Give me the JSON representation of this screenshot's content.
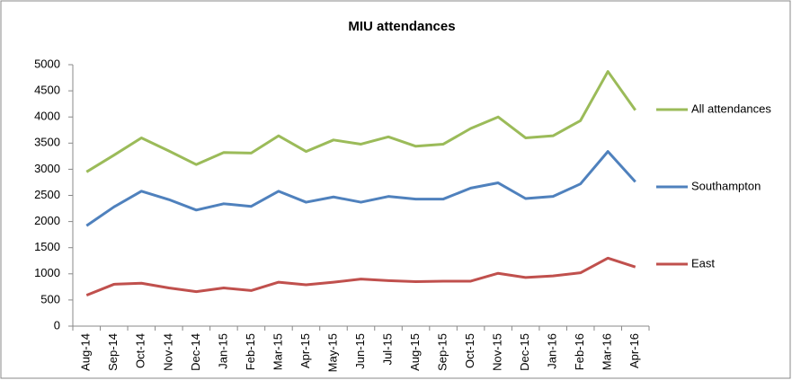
{
  "chart_data": {
    "type": "line",
    "title": "MIU attendances",
    "categories": [
      "Aug-14",
      "Sep-14",
      "Oct-14",
      "Nov-14",
      "Dec-14",
      "Jan-15",
      "Feb-15",
      "Mar-15",
      "Apr-15",
      "May-15",
      "Jun-15",
      "Jul-15",
      "Aug-15",
      "Sep-15",
      "Oct-15",
      "Nov-15",
      "Dec-15",
      "Jan-16",
      "Feb-16",
      "Mar-16",
      "Apr-16"
    ],
    "series": [
      {
        "name": "All attendances",
        "color": "#9bbb59",
        "values": [
          2950,
          3270,
          3600,
          3350,
          3090,
          3320,
          3310,
          3640,
          3340,
          3560,
          3480,
          3620,
          3440,
          3480,
          3780,
          4000,
          3600,
          3640,
          3930,
          4870,
          4130
        ]
      },
      {
        "name": "Southampton",
        "color": "#4f81bd",
        "values": [
          1920,
          2280,
          2580,
          2420,
          2220,
          2340,
          2290,
          2580,
          2370,
          2470,
          2370,
          2480,
          2430,
          2430,
          2640,
          2740,
          2440,
          2480,
          2720,
          3340,
          2760
        ]
      },
      {
        "name": "East",
        "color": "#c0504d",
        "values": [
          590,
          800,
          820,
          730,
          660,
          730,
          680,
          840,
          790,
          840,
          900,
          870,
          850,
          860,
          860,
          1010,
          930,
          960,
          1020,
          1300,
          1130
        ]
      }
    ],
    "ylim": [
      0,
      5000
    ],
    "yticks": [
      0,
      500,
      1000,
      1500,
      2000,
      2500,
      3000,
      3500,
      4000,
      4500,
      5000
    ],
    "grid": false,
    "legend": "right"
  }
}
